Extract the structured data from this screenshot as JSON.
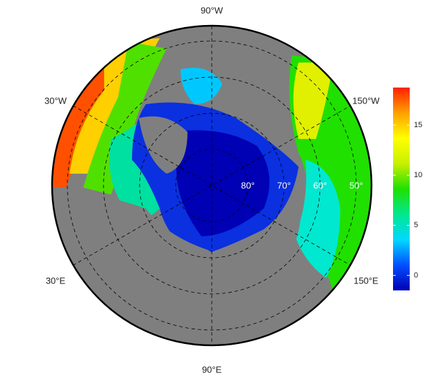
{
  "map": {
    "meridian_labels": [
      "90°W",
      "150°W",
      "150°E",
      "90°E",
      "30°E",
      "30°W"
    ],
    "parallels": [
      {
        "value": 80,
        "label": "80°"
      },
      {
        "value": 70,
        "label": "70°"
      },
      {
        "value": 60,
        "label": "60°"
      },
      {
        "value": 50,
        "label": "50°"
      }
    ],
    "colorbar": {
      "lim": [
        -1.5,
        18.75
      ],
      "ticks": [
        0,
        5,
        10,
        15
      ],
      "colors": [
        "#0000b4",
        "#0050ff",
        "#00d8ff",
        "#00e890",
        "#20e000",
        "#c8f000",
        "#ffff00",
        "#ffa000",
        "#ff2000"
      ]
    }
  }
}
